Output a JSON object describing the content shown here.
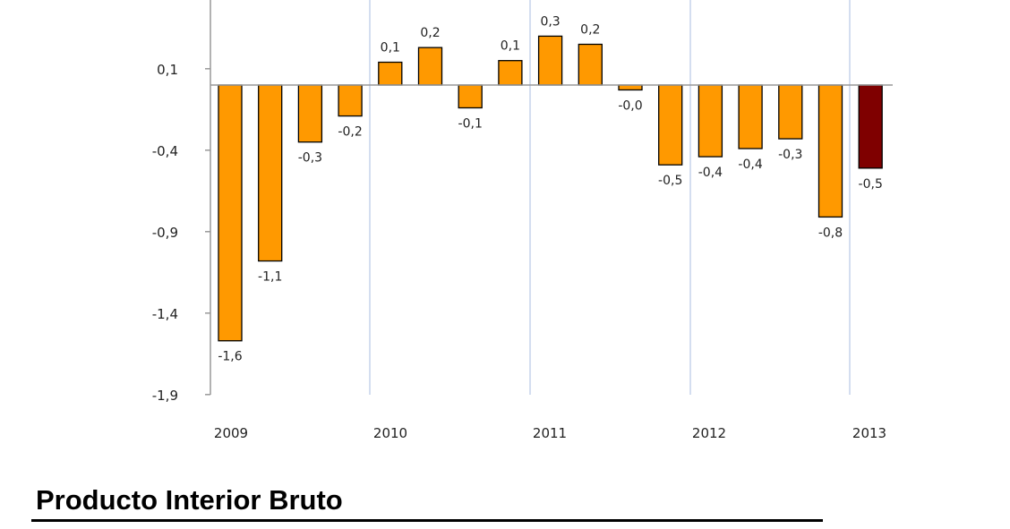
{
  "chart_data": {
    "type": "bar",
    "title": "",
    "xlabel": "",
    "ylabel": "",
    "ylim": [
      -1.9,
      0.52
    ],
    "yticks": [
      0.1,
      -0.4,
      -0.9,
      -1.4,
      -1.9
    ],
    "ytick_labels": [
      "0,1",
      "-0,4",
      "-0,9",
      "-1,4",
      "-1,9"
    ],
    "x_year_labels": [
      "2009",
      "2010",
      "2011",
      "2012",
      "2013"
    ],
    "grid": "vertical lines between years",
    "values": [
      -1.57,
      -1.08,
      -0.35,
      -0.19,
      0.14,
      0.23,
      -0.14,
      0.15,
      0.3,
      0.25,
      -0.03,
      -0.49,
      -0.44,
      -0.39,
      -0.33,
      -0.81,
      -0.51
    ],
    "data_labels": [
      "-1,6",
      "-1,1",
      "-0,3",
      "-0,2",
      "0,1",
      "0,2",
      "-0,1",
      "0,1",
      "0,3",
      "0,2",
      "-0,0",
      "-0,5",
      "-0,4",
      "-0,4",
      "-0,3",
      "-0,8",
      "-0,5"
    ],
    "colors": {
      "bar": "#FF9900",
      "last_bar": "#7F0000",
      "grid": "#A9BCE0",
      "axis": "#999999"
    }
  },
  "section_heading": "Producto Interior Bruto"
}
